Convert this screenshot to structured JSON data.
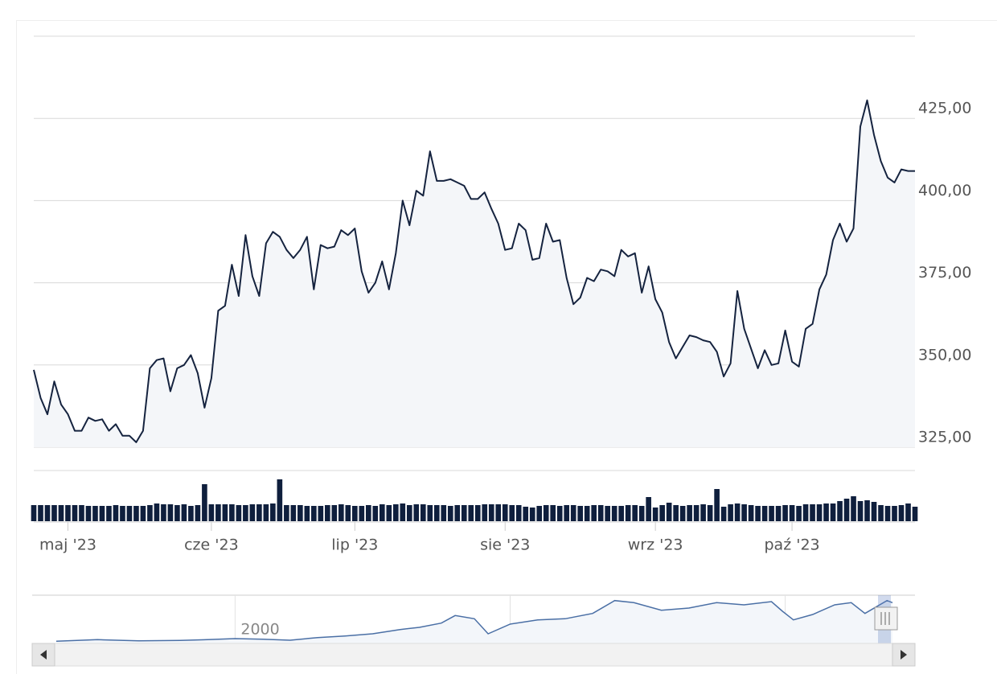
{
  "chart_data": {
    "type": "line",
    "categories": [
      null,
      null,
      null,
      null,
      null,
      "maj '23",
      null,
      null,
      null,
      null,
      null,
      null,
      null,
      null,
      null,
      null,
      null,
      null,
      null,
      null,
      null,
      null,
      null,
      null,
      null,
      null,
      "cze '23",
      null,
      null,
      null,
      null,
      null,
      null,
      null,
      null,
      null,
      null,
      null,
      null,
      null,
      null,
      null,
      null,
      null,
      null,
      null,
      null,
      "lip '23",
      null,
      null,
      null,
      null,
      null,
      null,
      null,
      null,
      null,
      null,
      null,
      null,
      null,
      null,
      null,
      null,
      null,
      null,
      null,
      null,
      null,
      "sie '23",
      null,
      null,
      null,
      null,
      null,
      null,
      null,
      null,
      null,
      null,
      null,
      null,
      null,
      null,
      null,
      null,
      null,
      null,
      null,
      null,
      null,
      "wrz '23",
      null,
      null,
      null,
      null,
      null,
      null,
      null,
      null,
      null,
      null,
      null,
      null,
      null,
      null,
      null,
      null,
      null,
      null,
      null,
      "paź '23",
      null,
      null,
      null,
      null,
      null,
      null,
      null,
      null,
      null,
      null,
      null,
      null,
      null,
      null,
      null,
      null,
      null,
      null
    ],
    "values": [
      348.5,
      340,
      335,
      345,
      338,
      335,
      330,
      330,
      334,
      333,
      333.5,
      330,
      332,
      328.5,
      328.5,
      326.5,
      330,
      349,
      351.5,
      352,
      342,
      349,
      350,
      353,
      347.5,
      337,
      346,
      366.5,
      368,
      380.5,
      371,
      389.5,
      377,
      371,
      387,
      390.5,
      389,
      385,
      382.5,
      385,
      389,
      373,
      386.5,
      385.5,
      386,
      391,
      389.5,
      391.5,
      378.5,
      372,
      375,
      381.5,
      373,
      384,
      400,
      392.5,
      403,
      401.5,
      415,
      406,
      406,
      406.5,
      405.5,
      404.5,
      400.5,
      400.5,
      402.5,
      397.5,
      393,
      385,
      385.5,
      393,
      391,
      382,
      382.5,
      393,
      387.5,
      388,
      376.5,
      368.5,
      370.5,
      376.5,
      375.5,
      379,
      378.5,
      377,
      385,
      383,
      384,
      372,
      380,
      370,
      366,
      357,
      352,
      355.5,
      359,
      358.5,
      357.5,
      357,
      354,
      346.5,
      350.5,
      372.5,
      361,
      355,
      349,
      354.5,
      350,
      350.5,
      360.5,
      351,
      349.5,
      361,
      362.5,
      373,
      377.5,
      388,
      393,
      387.5,
      391.5,
      422.5,
      430.5,
      420,
      412,
      407,
      405.5,
      409.5,
      409,
      409
    ],
    "volume": [
      20,
      20,
      20,
      20,
      20,
      20,
      20,
      20,
      19,
      19,
      19,
      19,
      20,
      19,
      19,
      19,
      19,
      20,
      22,
      21,
      21,
      20,
      21,
      19,
      20,
      46,
      21,
      21,
      21,
      21,
      20,
      20,
      21,
      21,
      21,
      22,
      52,
      20,
      20,
      20,
      19,
      19,
      19,
      20,
      20,
      21,
      20,
      19,
      19,
      20,
      19,
      21,
      20,
      21,
      22,
      20,
      21,
      21,
      20,
      20,
      20,
      19,
      20,
      20,
      20,
      20,
      21,
      21,
      21,
      21,
      20,
      20,
      18,
      17,
      19,
      20,
      20,
      19,
      20,
      20,
      19,
      19,
      20,
      20,
      19,
      19,
      19,
      20,
      20,
      19,
      30,
      17,
      20,
      23,
      20,
      19,
      20,
      20,
      21,
      20,
      40,
      18,
      21,
      22,
      21,
      20,
      19,
      19,
      19,
      19,
      20,
      20,
      19,
      21,
      21,
      21,
      22,
      22,
      25,
      28,
      31,
      25,
      26,
      24,
      20,
      19,
      19,
      20,
      22,
      18
    ],
    "color": "#15233f",
    "volume_color": "#0f1f3d",
    "ylim": [
      325,
      450
    ],
    "yticks": [
      {
        "value": 325,
        "label": "325,00"
      },
      {
        "value": 350,
        "label": "350,00"
      },
      {
        "value": 375,
        "label": "375,00"
      },
      {
        "value": 400,
        "label": "400,00"
      },
      {
        "value": 425,
        "label": "425,00"
      }
    ],
    "grid": true,
    "navigator": {
      "x": [
        1993.5,
        1995,
        1996.5,
        1998,
        1999,
        2000,
        2001,
        2002,
        2003,
        2004,
        2005,
        2006,
        2006.7,
        2007.5,
        2008,
        2008.7,
        2009.2,
        2010,
        2011,
        2012,
        2013,
        2013.8,
        2014.5,
        2015.5,
        2016.5,
        2017.5,
        2018.5,
        2019.5,
        2019.9,
        2020.3,
        2021,
        2021.8,
        2022.4,
        2022.9,
        2023.3,
        2023.7,
        2023.9
      ],
      "values": [
        20,
        35,
        25,
        28,
        35,
        45,
        40,
        30,
        55,
        70,
        90,
        130,
        150,
        190,
        260,
        230,
        90,
        180,
        220,
        230,
        280,
        400,
        380,
        310,
        330,
        380,
        360,
        390,
        300,
        220,
        270,
        360,
        380,
        280,
        340,
        400,
        380
      ],
      "xlim": [
        1993.5,
        2023.9
      ],
      "ylim": [
        0,
        450
      ],
      "xticks": [
        2000,
        2010,
        2020
      ],
      "color": "#4a6fa5"
    }
  }
}
